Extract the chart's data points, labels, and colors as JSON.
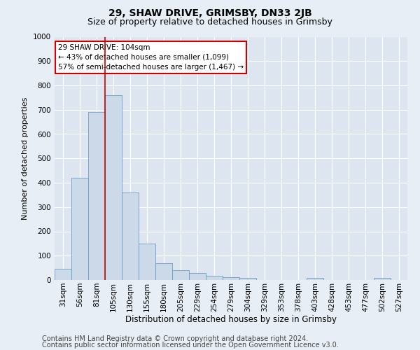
{
  "title1": "29, SHAW DRIVE, GRIMSBY, DN33 2JB",
  "title2": "Size of property relative to detached houses in Grimsby",
  "xlabel": "Distribution of detached houses by size in Grimsby",
  "ylabel": "Number of detached properties",
  "footer1": "Contains HM Land Registry data © Crown copyright and database right 2024.",
  "footer2": "Contains public sector information licensed under the Open Government Licence v3.0.",
  "categories": [
    "31sqm",
    "56sqm",
    "81sqm",
    "105sqm",
    "130sqm",
    "155sqm",
    "180sqm",
    "205sqm",
    "229sqm",
    "254sqm",
    "279sqm",
    "304sqm",
    "329sqm",
    "353sqm",
    "378sqm",
    "403sqm",
    "428sqm",
    "453sqm",
    "477sqm",
    "502sqm",
    "527sqm"
  ],
  "values": [
    45,
    420,
    690,
    760,
    360,
    150,
    70,
    40,
    28,
    18,
    12,
    8,
    0,
    0,
    0,
    8,
    0,
    0,
    0,
    8,
    0
  ],
  "bar_color": "#ccd9e8",
  "bar_edge_color": "#6a9ec5",
  "property_line_index": 3,
  "property_line_color": "#cc0000",
  "annotation_line1": "29 SHAW DRIVE: 104sqm",
  "annotation_line2": "← 43% of detached houses are smaller (1,099)",
  "annotation_line3": "57% of semi-detached houses are larger (1,467) →",
  "annotation_box_color": "#cc0000",
  "ylim": [
    0,
    1000
  ],
  "yticks": [
    0,
    100,
    200,
    300,
    400,
    500,
    600,
    700,
    800,
    900,
    1000
  ],
  "background_color": "#e8eef5",
  "plot_bg_color": "#dde6f0",
  "grid_color": "#ffffff",
  "title1_fontsize": 10,
  "title2_fontsize": 9,
  "xlabel_fontsize": 8.5,
  "ylabel_fontsize": 8,
  "tick_fontsize": 7.5,
  "footer_fontsize": 7,
  "ann_fontsize": 7.5
}
